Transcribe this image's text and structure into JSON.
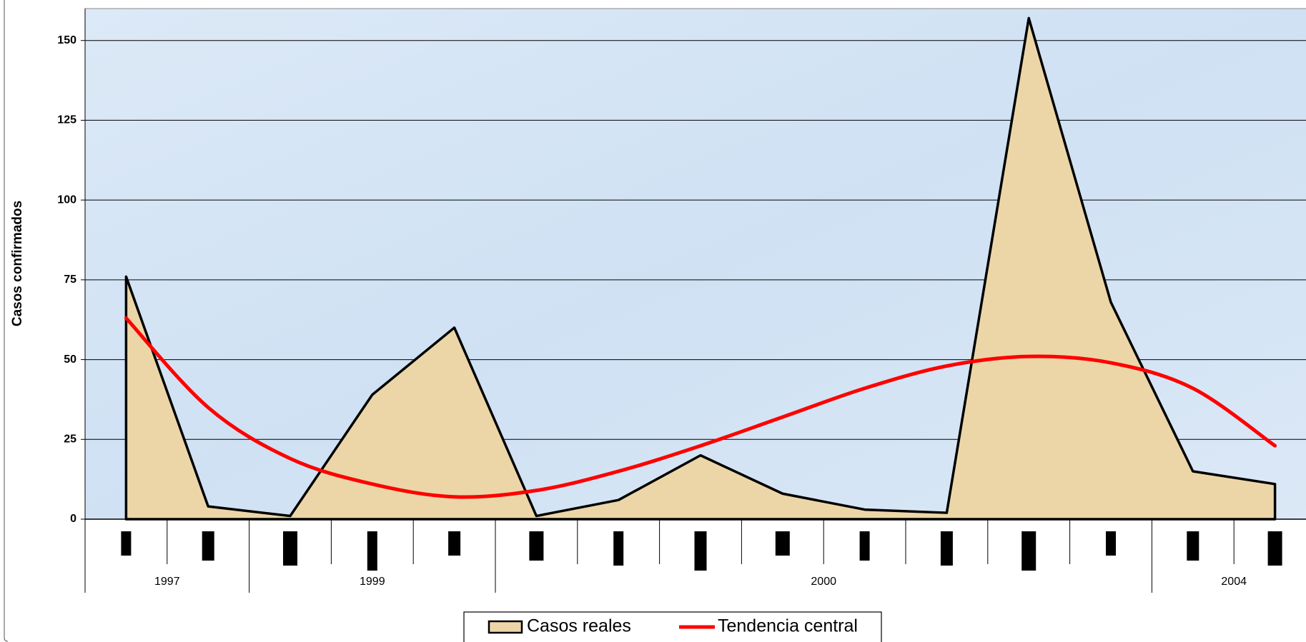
{
  "chart_data": {
    "type": "area",
    "y_label": "Casos confirmados",
    "categories": [
      null,
      null,
      null,
      null,
      null,
      null,
      null,
      null,
      null,
      null,
      null,
      null,
      null,
      null,
      null
    ],
    "groups": [
      {
        "label": "1997",
        "span": 2
      },
      {
        "label": "1999",
        "span": 3
      },
      {
        "label": "2000",
        "span": 8
      },
      {
        "label": "2004",
        "span": 2
      }
    ],
    "series": [
      {
        "name": "Casos reales",
        "type": "area",
        "color": "#ecd6a8",
        "values": [
          76,
          4,
          1,
          39,
          60,
          1,
          6,
          20,
          8,
          3,
          2,
          157,
          68,
          15,
          11
        ]
      },
      {
        "name": "Tendencia central",
        "type": "line",
        "color": "#ff0000",
        "values": [
          63,
          35,
          19,
          11,
          7,
          9,
          15,
          23,
          32,
          41,
          48,
          51,
          49,
          41,
          23
        ]
      }
    ],
    "ylim": [
      0,
      160
    ],
    "yticks": [
      0,
      25,
      50,
      75,
      100,
      125,
      150
    ],
    "grid": true,
    "legend": "bottom"
  }
}
